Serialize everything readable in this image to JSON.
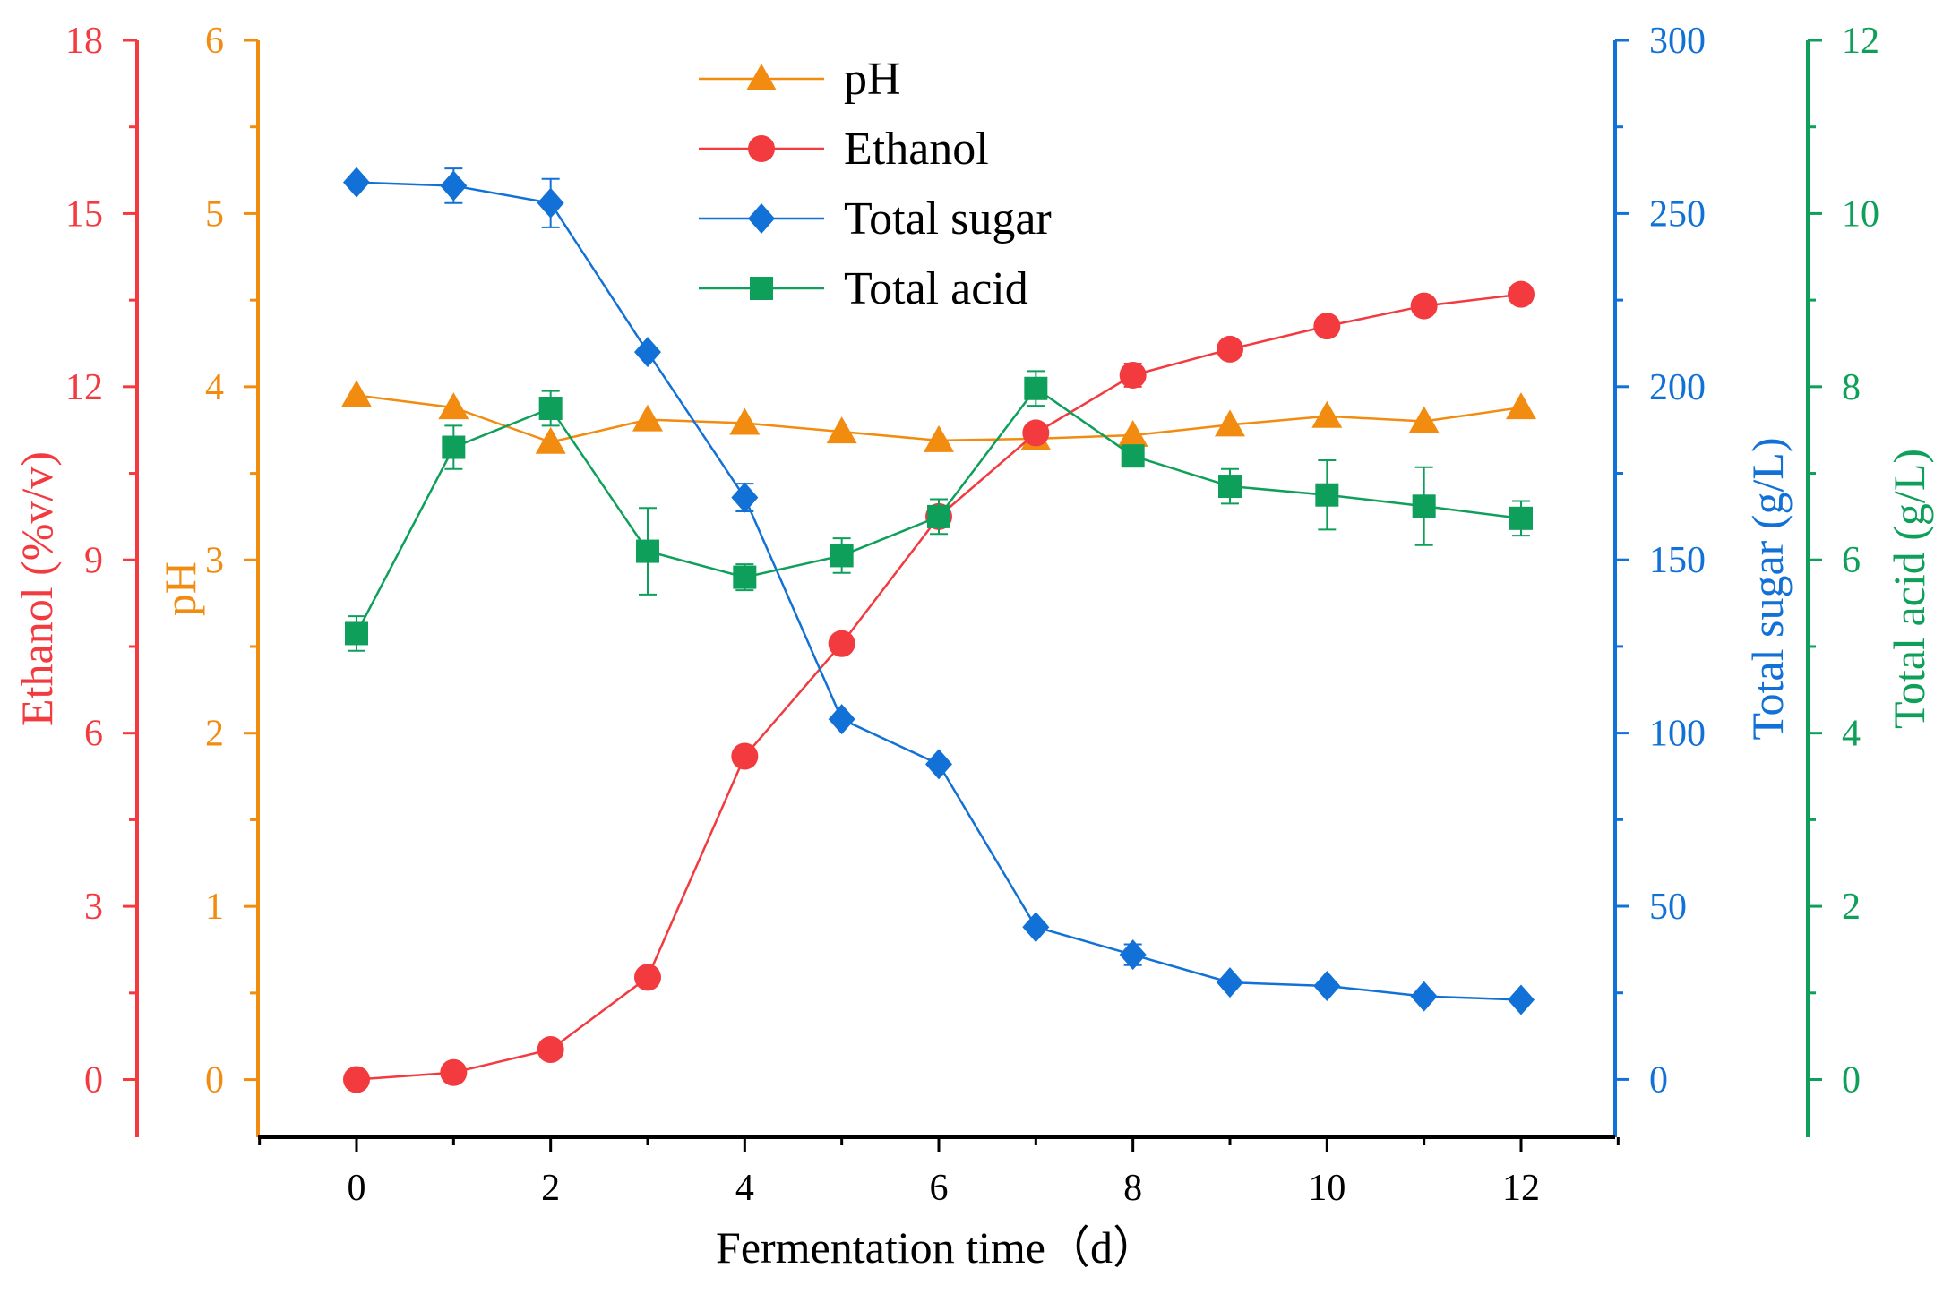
{
  "chart_data": {
    "type": "line",
    "xlabel": "Fermentation time（d）",
    "x": [
      0,
      1,
      2,
      3,
      4,
      5,
      6,
      7,
      8,
      9,
      10,
      11,
      12
    ],
    "xlim": [
      -1,
      13
    ],
    "xticks": [
      0,
      2,
      4,
      6,
      8,
      10,
      12
    ],
    "axes": [
      {
        "id": "ethanol",
        "label": "Ethanol (%v/v)",
        "color": "#f23a3f",
        "side": "left",
        "ylim": [
          -1,
          18
        ],
        "ticks": [
          0,
          3,
          6,
          9,
          12,
          15,
          18
        ]
      },
      {
        "id": "ph",
        "label": "pH",
        "color": "#f28c10",
        "side": "left",
        "ylim": [
          -0.333,
          6
        ],
        "ticks": [
          0,
          1,
          2,
          3,
          4,
          5,
          6
        ]
      },
      {
        "id": "sugar",
        "label": "Total sugar (g/L)",
        "color": "#1271d6",
        "side": "right",
        "ylim": [
          -16.7,
          300
        ],
        "ticks": [
          0,
          50,
          100,
          150,
          200,
          250,
          300
        ]
      },
      {
        "id": "acid",
        "label": "Total acid (g/L)",
        "color": "#0ea05a",
        "side": "right",
        "ylim": [
          -0.667,
          12
        ],
        "ticks": [
          0,
          2,
          4,
          6,
          8,
          10,
          12
        ]
      }
    ],
    "series": [
      {
        "name": "pH",
        "axis": "ph",
        "marker": "triangle",
        "color": "#f28c10",
        "values": [
          3.95,
          3.88,
          3.68,
          3.81,
          3.79,
          3.74,
          3.69,
          3.7,
          3.72,
          3.78,
          3.83,
          3.8,
          3.88
        ],
        "errors": [
          0,
          0,
          0,
          0,
          0,
          0,
          0,
          0,
          0,
          0,
          0,
          0,
          0
        ]
      },
      {
        "name": "Ethanol",
        "axis": "ethanol",
        "marker": "circle",
        "color": "#f23a3f",
        "values": [
          0.0,
          0.12,
          0.52,
          1.77,
          5.6,
          7.55,
          9.75,
          11.2,
          12.2,
          12.65,
          13.05,
          13.4,
          13.6
        ],
        "errors": [
          0,
          0,
          0,
          0,
          0,
          0,
          0,
          0.15,
          0.2,
          0,
          0,
          0,
          0
        ]
      },
      {
        "name": "Total sugar",
        "axis": "sugar",
        "marker": "diamond",
        "color": "#1271d6",
        "values": [
          259,
          258,
          253,
          210,
          168,
          104,
          91,
          44,
          36,
          28,
          27,
          24,
          23
        ],
        "errors": [
          0,
          5,
          7,
          0,
          4,
          0,
          0,
          0,
          3,
          0,
          0,
          0,
          0
        ]
      },
      {
        "name": "Total acid",
        "axis": "acid",
        "marker": "square",
        "color": "#0ea05a",
        "values": [
          5.15,
          7.3,
          7.75,
          6.1,
          5.8,
          6.05,
          6.5,
          7.98,
          7.2,
          6.85,
          6.75,
          6.62,
          6.48
        ],
        "errors": [
          0.2,
          0.25,
          0.2,
          0.5,
          0.15,
          0.2,
          0.2,
          0.2,
          0,
          0.2,
          0.4,
          0.45,
          0.2
        ]
      }
    ],
    "legend": {
      "position": "top-center"
    }
  }
}
